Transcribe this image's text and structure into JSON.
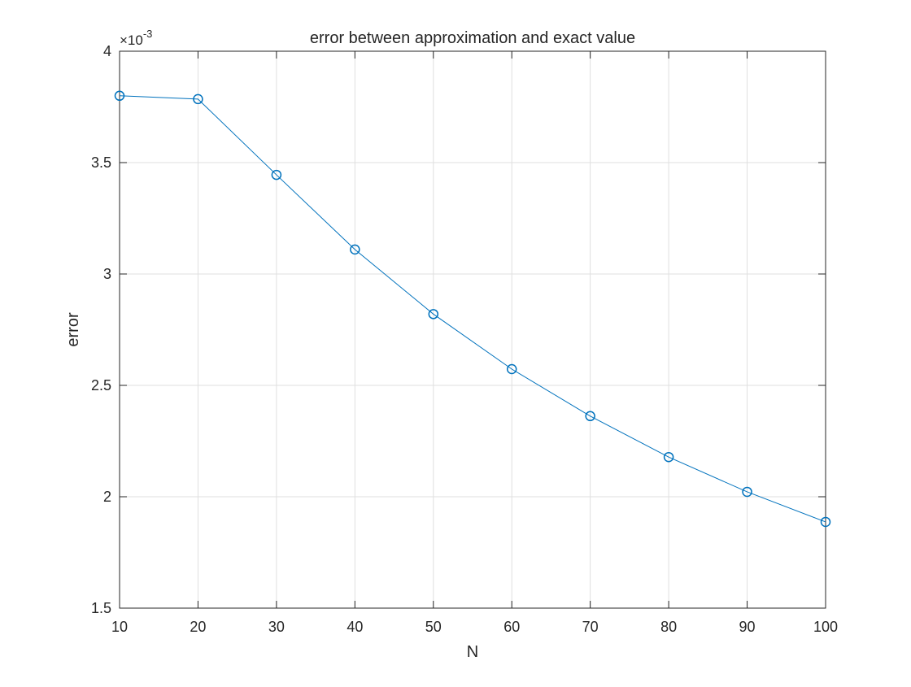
{
  "chart_data": {
    "type": "line",
    "title": "error between approximation and exact value",
    "xlabel": "N",
    "ylabel": "error",
    "y_exponent_label": {
      "base": "×10",
      "exponent": "-3"
    },
    "xlim": [
      10,
      100
    ],
    "ylim": [
      1.5,
      4
    ],
    "xticks": [
      10,
      20,
      30,
      40,
      50,
      60,
      70,
      80,
      90,
      100
    ],
    "xtick_labels": [
      "10",
      "20",
      "30",
      "40",
      "50",
      "60",
      "70",
      "80",
      "90",
      "100"
    ],
    "yticks": [
      1.5,
      2,
      2.5,
      3,
      3.5,
      4
    ],
    "ytick_labels": [
      "1.5",
      "2",
      "2.5",
      "3",
      "3.5",
      "4"
    ],
    "grid": true,
    "series": [
      {
        "marker": "circle",
        "color": "#0072bd",
        "x": [
          10,
          20,
          30,
          40,
          50,
          60,
          70,
          80,
          90,
          100
        ],
        "y": [
          3.8,
          3.785,
          3.445,
          3.11,
          2.82,
          2.573,
          2.362,
          2.178,
          2.022,
          1.887
        ]
      }
    ]
  }
}
